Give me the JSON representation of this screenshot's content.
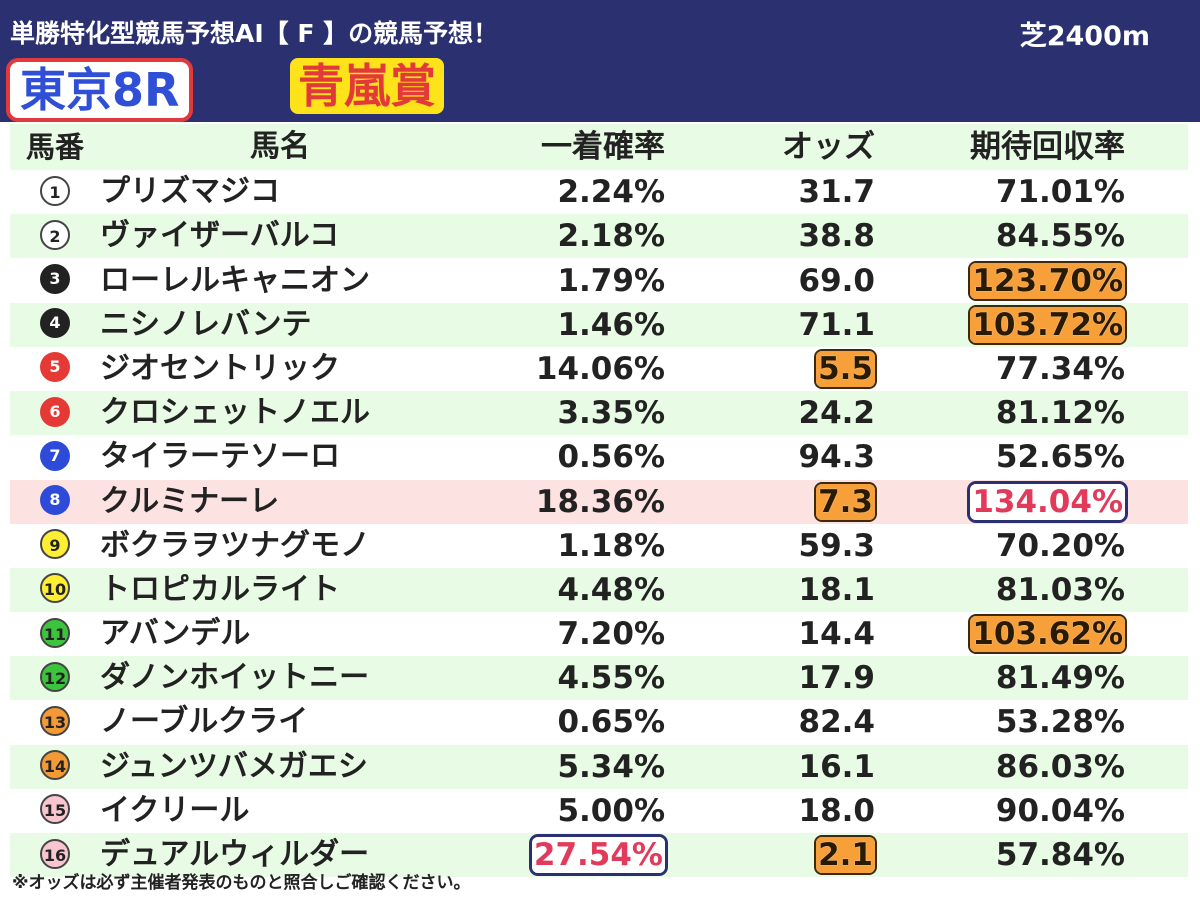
{
  "header": {
    "title": "単勝特化型競馬予想AI【 F 】の競馬予想！",
    "distance": "芝2400m",
    "race_no": "東京8R",
    "race_name": "青嵐賞"
  },
  "table": {
    "columns": [
      "馬番",
      "馬名",
      "一着確率",
      "オッズ",
      "期待回収率"
    ],
    "rows": [
      {
        "num": "1",
        "name": "プリズマジコ",
        "prob": "2.24%",
        "odds": "31.7",
        "ret": "71.01%"
      },
      {
        "num": "2",
        "name": "ヴァイザーバルコ",
        "prob": "2.18%",
        "odds": "38.8",
        "ret": "84.55%"
      },
      {
        "num": "3",
        "name": "ローレルキャニオン",
        "prob": "1.79%",
        "odds": "69.0",
        "ret": "123.70%"
      },
      {
        "num": "4",
        "name": "ニシノレバンテ",
        "prob": "1.46%",
        "odds": "71.1",
        "ret": "103.72%"
      },
      {
        "num": "5",
        "name": "ジオセントリック",
        "prob": "14.06%",
        "odds": "5.5",
        "ret": "77.34%"
      },
      {
        "num": "6",
        "name": "クロシェットノエル",
        "prob": "3.35%",
        "odds": "24.2",
        "ret": "81.12%"
      },
      {
        "num": "7",
        "name": "タイラーテソーロ",
        "prob": "0.56%",
        "odds": "94.3",
        "ret": "52.65%"
      },
      {
        "num": "8",
        "name": "クルミナーレ",
        "prob": "18.36%",
        "odds": "7.3",
        "ret": "134.04%"
      },
      {
        "num": "9",
        "name": "ボクラヲツナグモノ",
        "prob": "1.18%",
        "odds": "59.3",
        "ret": "70.20%"
      },
      {
        "num": "10",
        "name": "トロピカルライト",
        "prob": "4.48%",
        "odds": "18.1",
        "ret": "81.03%"
      },
      {
        "num": "11",
        "name": "アバンデル",
        "prob": "7.20%",
        "odds": "14.4",
        "ret": "103.62%"
      },
      {
        "num": "12",
        "name": "ダノンホイットニー",
        "prob": "4.55%",
        "odds": "17.9",
        "ret": "81.49%"
      },
      {
        "num": "13",
        "name": "ノーブルクライ",
        "prob": "0.65%",
        "odds": "82.4",
        "ret": "53.28%"
      },
      {
        "num": "14",
        "name": "ジュンツバメガエシ",
        "prob": "5.34%",
        "odds": "16.1",
        "ret": "86.03%"
      },
      {
        "num": "15",
        "name": "イクリール",
        "prob": "5.00%",
        "odds": "18.0",
        "ret": "90.04%"
      },
      {
        "num": "16",
        "name": "デュアルウィルダー",
        "prob": "27.54%",
        "odds": "2.1",
        "ret": "57.84%"
      }
    ]
  },
  "footnote": "※オッズは必ず主催者発表のものと照合しご確認ください。",
  "colors": {
    "header_bg": "#2b3170",
    "row_alt": "#e8fbe4",
    "row_highlight": "#fde2e2",
    "highlight_orange": "#f7a03a",
    "highlight_pink_text": "#e23a5a"
  }
}
